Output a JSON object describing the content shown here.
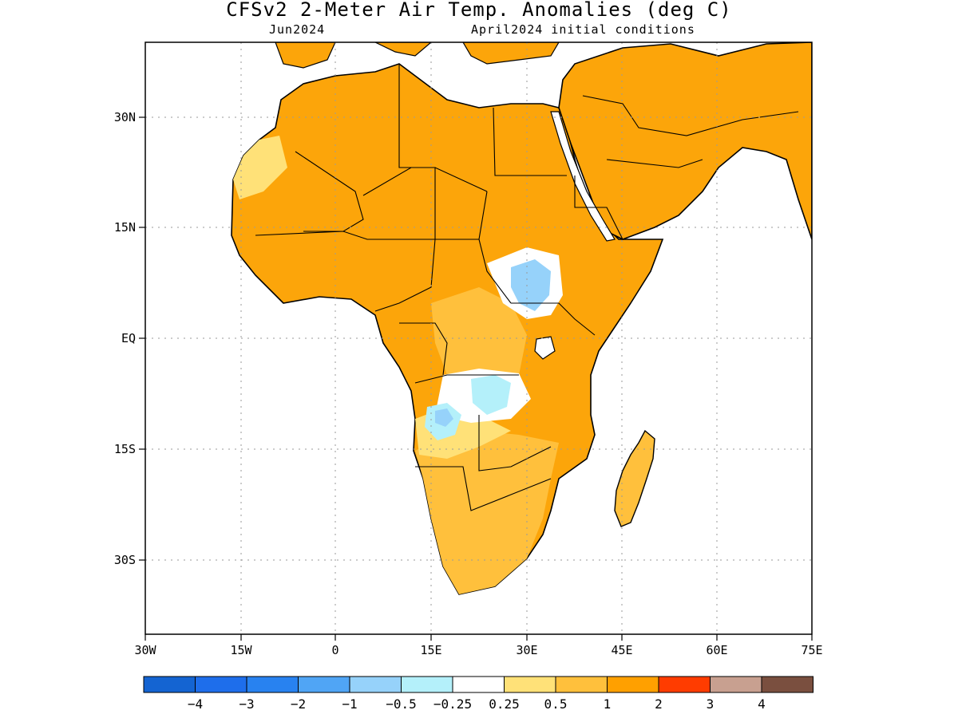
{
  "title": "CFSv2 2-Meter Air Temp. Anomalies (deg C)",
  "subtitle_left": "Jun2024",
  "subtitle_right": "April2024 initial conditions",
  "colors": {
    "land_dominant": "#fca50a",
    "ocean": "#ffffff",
    "coast": "#000000",
    "grid": "#9a9a9a"
  },
  "chart_data": {
    "type": "map",
    "field": "2-meter air temperature anomaly",
    "units": "deg C",
    "region": "Africa",
    "lon_range": [
      -30,
      75
    ],
    "lat_range": [
      -41,
      39
    ],
    "x_ticks": [
      "30W",
      "15W",
      "0",
      "15E",
      "30E",
      "45E",
      "60E",
      "75E"
    ],
    "y_ticks": [
      "30N",
      "15N",
      "EQ",
      "15S",
      "30S"
    ],
    "grid": true,
    "colorbar": {
      "colors": [
        "#1464d2",
        "#1e6eeb",
        "#2882f0",
        "#50a5f5",
        "#96d2fa",
        "#b4f0fa",
        "#ffffff",
        "#ffe178",
        "#ffc03c",
        "#ffa000",
        "#ff3c00",
        "#c8a090",
        "#7a4f3f"
      ],
      "labels": [
        "-4",
        "-3",
        "-2",
        "-1",
        "-0.5",
        "-0.25",
        "0.25",
        "0.5",
        "1",
        "2",
        "3",
        "4"
      ]
    }
  }
}
